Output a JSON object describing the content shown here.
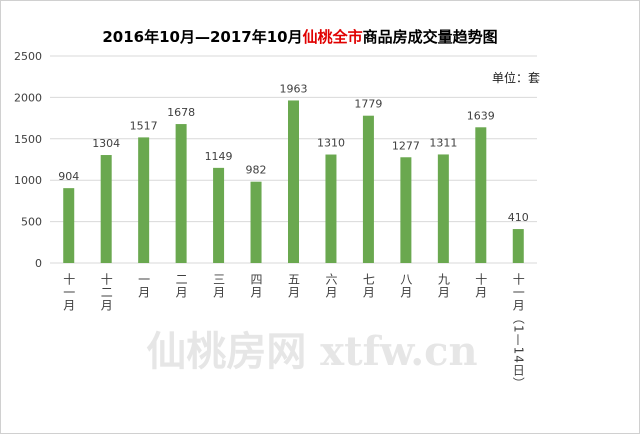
{
  "chart_data": {
    "type": "bar",
    "title_segments": [
      {
        "text": "2016年10月—2017年10月",
        "color": "#000000"
      },
      {
        "text": "仙桃全市",
        "color": "#e00000"
      },
      {
        "text": "商品房成交量趋势图",
        "color": "#000000"
      }
    ],
    "unit_label": "单位：套",
    "watermark": "仙桃房网 xtfw.cn",
    "categories": [
      "十一月",
      "十二月",
      "一月",
      "二月",
      "三月",
      "四月",
      "五月",
      "六月",
      "七月",
      "八月",
      "九月",
      "十月",
      "十一月（1—14日）"
    ],
    "values": [
      904,
      1304,
      1517,
      1678,
      1149,
      982,
      1963,
      1310,
      1779,
      1277,
      1311,
      1639,
      410
    ],
    "color": "#6aa84f",
    "ylim": [
      0,
      2500
    ],
    "yticks": [
      0,
      500,
      1000,
      1500,
      2000,
      2500
    ],
    "grid": true
  }
}
